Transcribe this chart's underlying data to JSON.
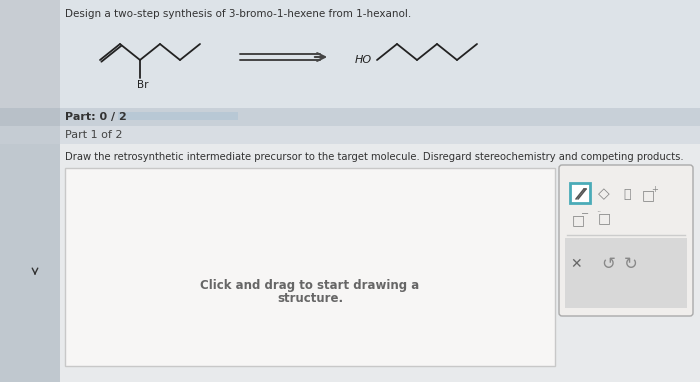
{
  "title_text": "Design a two-step synthesis of 3-bromo-1-hexene from 1-hexanol.",
  "title_fontsize": 7.5,
  "title_color": "#333333",
  "top_bg_color": "#dde3e8",
  "mid_bg_color": "#c8d0d8",
  "part1_bg_color": "#d8dde3",
  "content_bg_color": "#e8eaec",
  "part_label": "Part: 0 / 2",
  "part1_label": "Part 1 of 2",
  "instruction": "Draw the retrosynthetic intermediate precursor to the target molecule. Disregard stereochemistry and competing products.",
  "canvas_text_line1": "Click and drag to start drawing a",
  "canvas_text_line2": "structure.",
  "progress_bar_color": "#b0bec8",
  "arrow_color": "#444444",
  "molecule_color": "#222222",
  "br_label": "Br",
  "ho_label": "HO",
  "toolbar_border_color": "#aaaaaa",
  "toolbar_bg": "#f0eeec",
  "canvas_bg": "#f7f6f5",
  "canvas_border": "#c8c8c8",
  "pencil_highlight": "#4aabb8"
}
